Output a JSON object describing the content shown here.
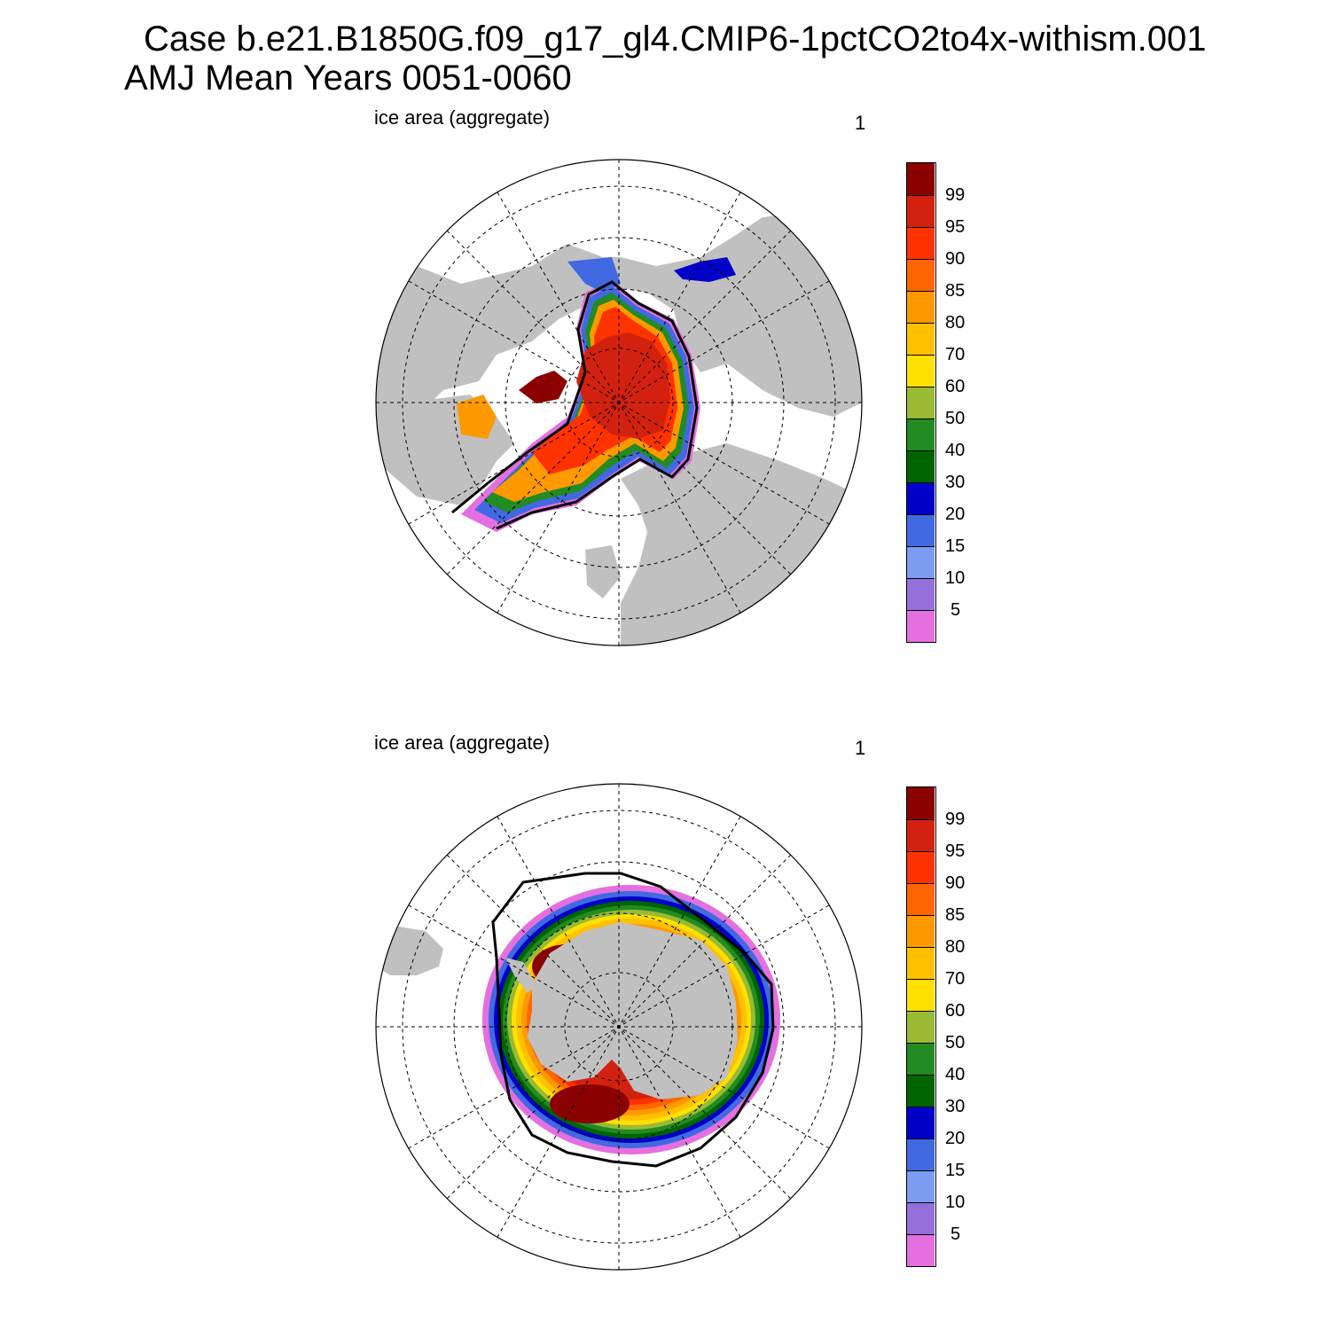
{
  "title": {
    "line1": "Case b.e21.B1850G.f09_g17_gl4.CMIP6-1pctCO2to4x-withism.001",
    "line2": "AMJ Mean   Years 0051-0060"
  },
  "panels": [
    {
      "id": "north",
      "label": "ice area  (aggregate)",
      "value": "1",
      "hemisphere": "north"
    },
    {
      "id": "south",
      "label": "ice area  (aggregate)",
      "value": "1",
      "hemisphere": "south"
    }
  ],
  "colorbar": {
    "levels": [
      "99",
      "95",
      "90",
      "85",
      "80",
      "70",
      "60",
      "50",
      "40",
      "30",
      "20",
      "15",
      "10",
      "5"
    ],
    "colors_top_to_bottom": [
      "#8b0000",
      "#d2220f",
      "#ff3300",
      "#ff6600",
      "#ff9900",
      "#ffc000",
      "#ffe000",
      "#99bb33",
      "#228b22",
      "#006400",
      "#0000c8",
      "#4169e1",
      "#7b9cf0",
      "#9370db",
      "#e470e0"
    ]
  },
  "map_colors": {
    "land": "#c0c0c0",
    "ocean": "#ffffff",
    "grid": "#000000",
    "contour": "#000000"
  }
}
